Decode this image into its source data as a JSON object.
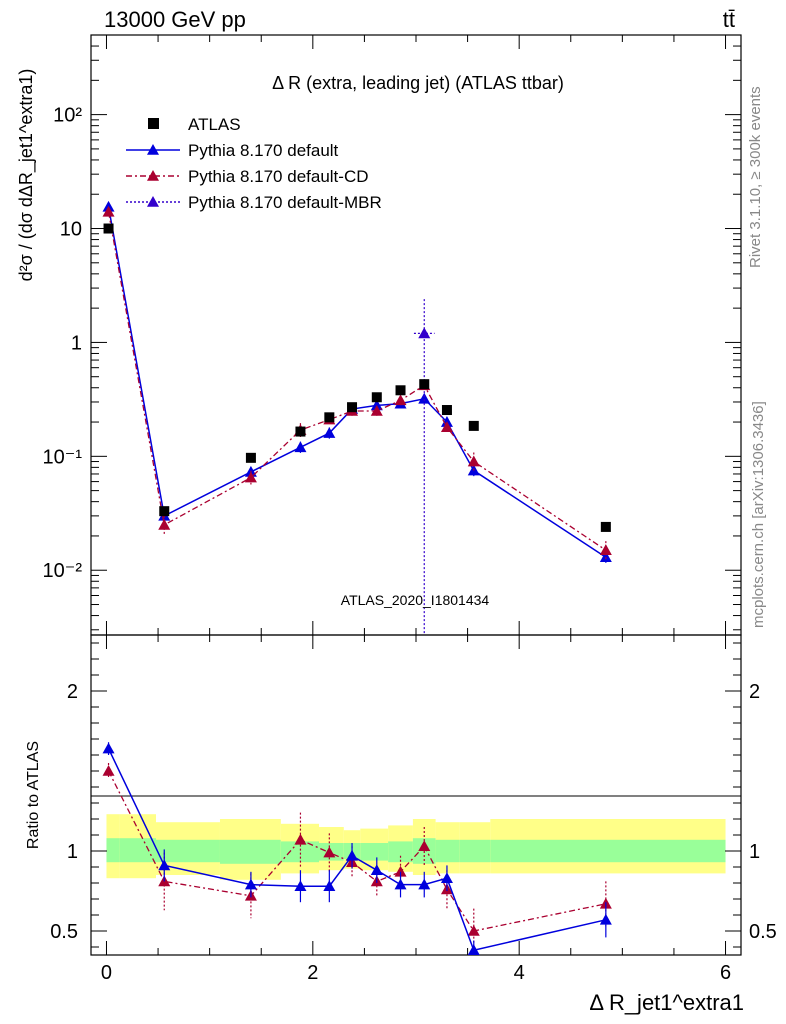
{
  "header": {
    "left": "13000 GeV pp",
    "right": "tt̄"
  },
  "side_labels": {
    "rivet": "Rivet 3.1.10, ≥ 300k events",
    "mcplots": "mcplots.cern.ch [arXiv:1306.3436]"
  },
  "chart_data": [
    {
      "type": "scatter",
      "title": "Δ R (extra, leading jet) (ATLAS ttbar)",
      "ylabel": "d²σ / (dσ dΔR_jet1^extra1)",
      "watermark": "ATLAS_2020_I1801434",
      "yscale": "log",
      "xlim": [
        -0.15,
        6.15
      ],
      "ylim": [
        0.0027,
        500
      ],
      "ytick_labels": [
        "10⁻²",
        "10⁻¹",
        "1",
        "10",
        "10²"
      ],
      "legend_position": "top-left",
      "colors": {
        "atlas": "#000000",
        "default": "#0000dd",
        "cd": "#aa0030",
        "mbr": "#3300cc"
      },
      "series": [
        {
          "name": "ATLAS",
          "marker": "square",
          "x": [
            0.02,
            0.56,
            1.4,
            1.88,
            2.16,
            2.38,
            2.62,
            2.85,
            3.08,
            3.3,
            3.56,
            4.84
          ],
          "y": [
            10.0,
            0.033,
            0.097,
            0.165,
            0.22,
            0.27,
            0.33,
            0.38,
            0.43,
            0.255,
            0.185,
            0.024
          ]
        },
        {
          "name": "Pythia 8.170 default",
          "marker": "triangle",
          "line": "solid",
          "x": [
            0.02,
            0.56,
            1.4,
            1.88,
            2.16,
            2.38,
            2.62,
            2.85,
            3.08,
            3.3,
            3.56,
            4.84
          ],
          "y": [
            15.5,
            0.03,
            0.073,
            0.12,
            0.16,
            0.26,
            0.28,
            0.29,
            0.32,
            0.2,
            0.075,
            0.013
          ],
          "err": [
            0.06,
            0.12,
            0.1,
            0.12,
            0.12,
            0.08,
            0.08,
            0.08,
            0.08,
            0.1,
            0.12,
            0.12
          ]
        },
        {
          "name": "Pythia 8.170 default-CD",
          "marker": "triangle",
          "line": "dashdot",
          "x": [
            0.02,
            0.56,
            1.4,
            1.88,
            2.16,
            2.38,
            2.62,
            2.85,
            3.08,
            3.3,
            3.56,
            4.84
          ],
          "y": [
            14.0,
            0.025,
            0.065,
            0.17,
            0.21,
            0.25,
            0.25,
            0.31,
            0.42,
            0.18,
            0.09,
            0.015
          ],
          "err": [
            0.06,
            0.2,
            0.15,
            0.15,
            0.12,
            0.1,
            0.1,
            0.1,
            0.1,
            0.1,
            0.2,
            0.2
          ]
        },
        {
          "name": "Pythia 8.170 default-MBR",
          "marker": "triangle",
          "line": "dotted",
          "x": [
            3.08
          ],
          "y": [
            1.2
          ],
          "xerr": [
            0.1
          ]
        }
      ]
    },
    {
      "type": "scatter",
      "ylabel": "Ratio to ATLAS",
      "xlabel": "Δ R_jet1^extra1",
      "xlim": [
        -0.15,
        6.15
      ],
      "ylim": [
        0.35,
        2.35
      ],
      "yticks": [
        0.5,
        1,
        2
      ],
      "ytick_labels": [
        "0.5",
        "1",
        "2"
      ],
      "xticks": [
        0,
        2,
        4,
        6
      ],
      "xtick_labels": [
        "0",
        "2",
        "4",
        "6"
      ],
      "bands": {
        "edges": [
          0.0,
          0.13,
          0.48,
          1.1,
          1.69,
          2.06,
          2.3,
          2.46,
          2.73,
          2.97,
          3.19,
          3.42,
          3.72,
          6.0
        ],
        "inner": [
          [
            0.93,
            1.08
          ],
          [
            0.93,
            1.08
          ],
          [
            0.93,
            1.07
          ],
          [
            0.92,
            1.07
          ],
          [
            0.93,
            1.06
          ],
          [
            0.94,
            1.05
          ],
          [
            0.95,
            1.05
          ],
          [
            0.94,
            1.05
          ],
          [
            0.93,
            1.06
          ],
          [
            0.92,
            1.08
          ],
          [
            0.93,
            1.07
          ],
          [
            0.93,
            1.07
          ],
          [
            0.93,
            1.07
          ]
        ],
        "outer": [
          [
            0.83,
            1.23
          ],
          [
            0.83,
            1.23
          ],
          [
            0.85,
            1.18
          ],
          [
            0.82,
            1.2
          ],
          [
            0.86,
            1.17
          ],
          [
            0.88,
            1.15
          ],
          [
            0.89,
            1.13
          ],
          [
            0.88,
            1.14
          ],
          [
            0.87,
            1.16
          ],
          [
            0.85,
            1.2
          ],
          [
            0.86,
            1.18
          ],
          [
            0.86,
            1.18
          ],
          [
            0.86,
            1.2
          ]
        ],
        "inner_color": "#99ff99",
        "outer_color": "#ffff88"
      },
      "series": [
        {
          "name": "Pythia 8.170 default",
          "x": [
            0.02,
            0.56,
            1.4,
            1.88,
            2.16,
            2.38,
            2.62,
            2.85,
            3.08,
            3.3,
            3.56,
            4.84
          ],
          "y": [
            1.64,
            0.91,
            0.79,
            0.78,
            0.78,
            0.97,
            0.88,
            0.79,
            0.79,
            0.83,
            0.38,
            0.57
          ],
          "err": [
            0.04,
            0.1,
            0.08,
            0.1,
            0.1,
            0.08,
            0.08,
            0.08,
            0.08,
            0.08,
            0.06,
            0.11
          ]
        },
        {
          "name": "Pythia 8.170 default-CD",
          "x": [
            0.02,
            0.56,
            1.4,
            1.88,
            2.16,
            2.38,
            2.62,
            2.85,
            3.08,
            3.3,
            3.56,
            4.84
          ],
          "y": [
            1.5,
            0.81,
            0.72,
            1.07,
            0.99,
            0.93,
            0.81,
            0.87,
            1.03,
            0.76,
            0.5,
            0.67
          ],
          "err": [
            0.05,
            0.18,
            0.14,
            0.17,
            0.12,
            0.1,
            0.1,
            0.1,
            0.12,
            0.12,
            0.14,
            0.14
          ]
        }
      ]
    }
  ]
}
